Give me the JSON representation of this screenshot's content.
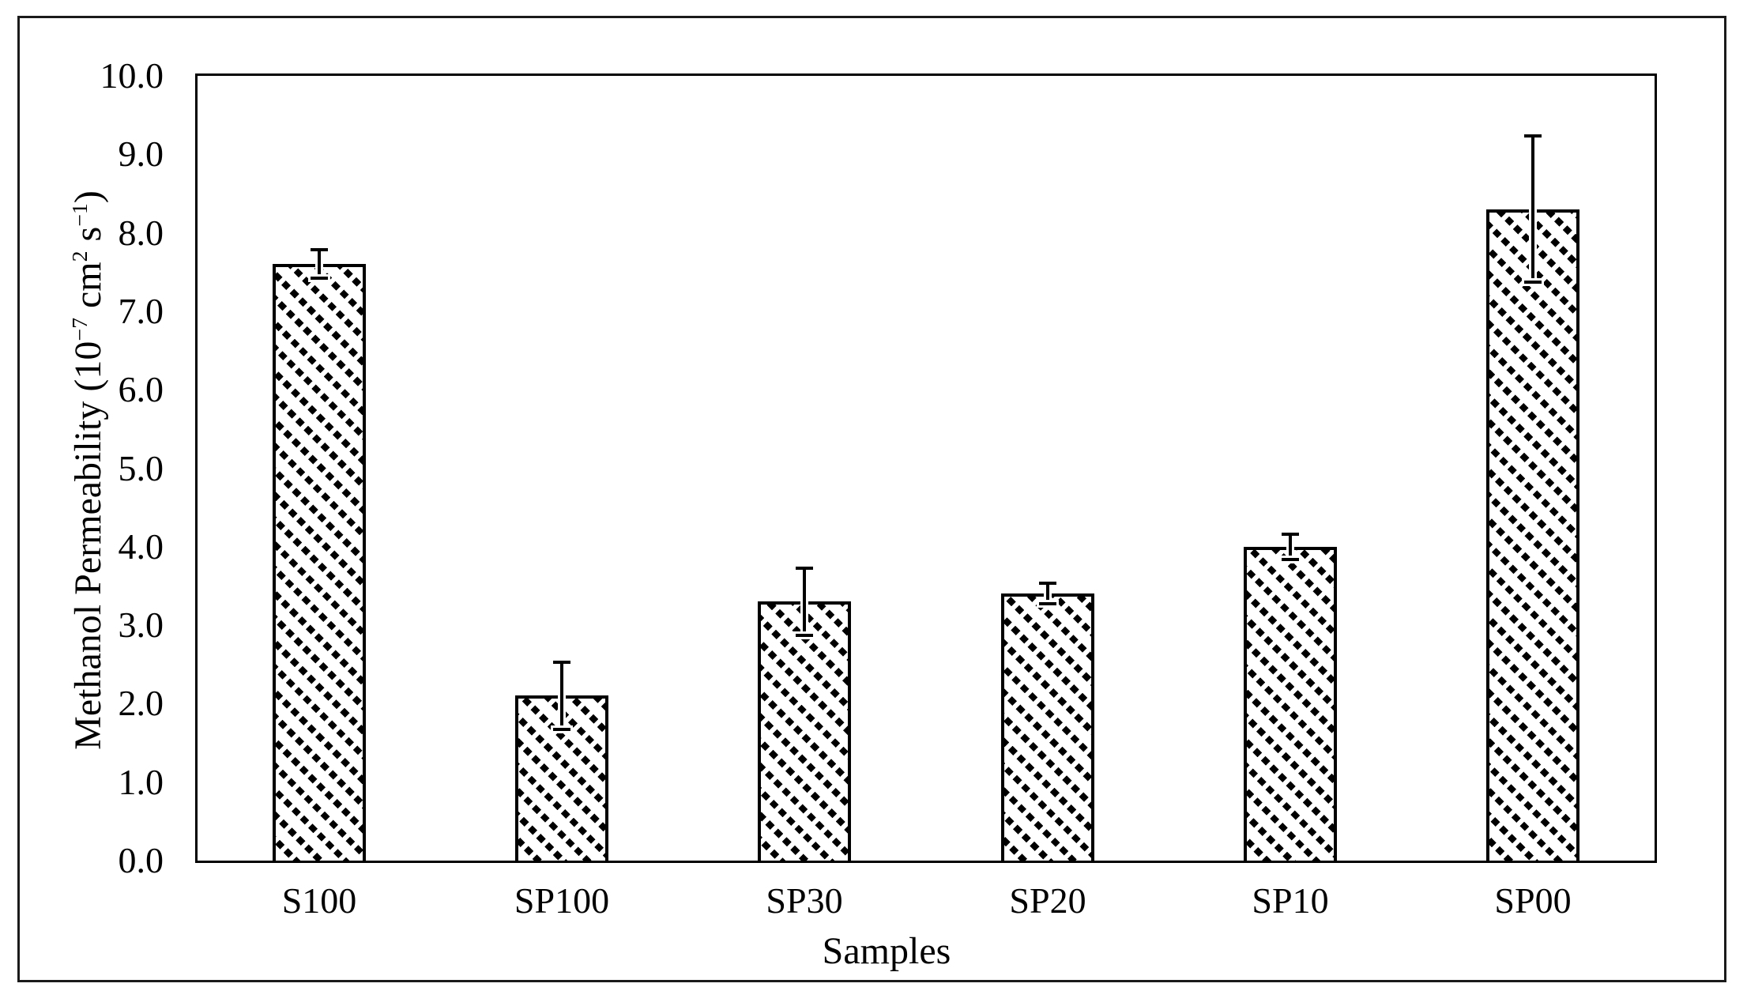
{
  "figure": {
    "background_color": "#ffffff",
    "border_color": "#1a1a1a"
  },
  "chart_data": {
    "type": "bar",
    "title": "",
    "xlabel": "Samples",
    "ylabel": "Methanol Permeability (10⁻⁷ cm² s⁻¹)",
    "categories": [
      "S100",
      "SP100",
      "SP30",
      "SP20",
      "SP10",
      "SP00"
    ],
    "values": [
      7.6,
      2.1,
      3.3,
      3.4,
      4.0,
      8.3
    ],
    "error_bars": [
      0.2,
      0.45,
      0.45,
      0.15,
      0.18,
      0.95
    ],
    "ylim": [
      0,
      10
    ],
    "ytick_step": 1.0,
    "ytick_labels": [
      "0.0",
      "1.0",
      "2.0",
      "3.0",
      "4.0",
      "5.0",
      "6.0",
      "7.0",
      "8.0",
      "9.0",
      "10.0"
    ],
    "grid": false,
    "legend": "none",
    "bar_style": {
      "fill_color": "#ffffff",
      "pattern": "downward-diagonal-hatch",
      "pattern_color": "#000000",
      "border_color": "#000000"
    }
  },
  "ylabel_rich": [
    {
      "text": "Methanol Permeability (10"
    },
    {
      "text": "−7",
      "sup": true
    },
    {
      "text": " cm"
    },
    {
      "text": "2",
      "sup": true
    },
    {
      "text": " s"
    },
    {
      "text": "−1",
      "sup": true
    },
    {
      "text": ")"
    }
  ]
}
